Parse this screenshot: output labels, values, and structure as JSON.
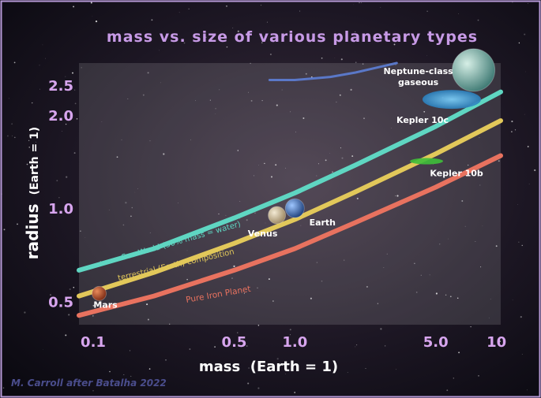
{
  "chart_data": {
    "type": "line",
    "title": "mass vs. size of various planetary types",
    "xlabel": "mass  (Earth = 1)",
    "ylabel_main": "radius",
    "ylabel_unit": "(Earth = 1)",
    "x_scale": "log",
    "y_scale": "log",
    "xlim": [
      0.085,
      10.5
    ],
    "ylim": [
      0.42,
      2.95
    ],
    "xticks": [
      {
        "value": 0.1,
        "label": "0.1"
      },
      {
        "value": 0.5,
        "label": "0.5"
      },
      {
        "value": 1.0,
        "label": "1.0"
      },
      {
        "value": 5.0,
        "label": "5.0"
      },
      {
        "value": 10,
        "label": "10"
      }
    ],
    "yticks": [
      {
        "value": 0.5,
        "label": "0.5"
      },
      {
        "value": 1.0,
        "label": "1.0"
      },
      {
        "value": 2.0,
        "label": "2.0"
      },
      {
        "value": 2.5,
        "label": "2.5"
      }
    ],
    "series": [
      {
        "name": "Sea World (50% mass = water)",
        "color": "#5fd6c2",
        "x": [
          0.085,
          0.2,
          0.5,
          1.0,
          2.0,
          5.0,
          10.5
        ],
        "y": [
          0.63,
          0.74,
          0.93,
          1.12,
          1.38,
          1.84,
          2.38
        ]
      },
      {
        "name": "terrestrial (Earth) composition",
        "color": "#e2c85a",
        "x": [
          0.085,
          0.2,
          0.5,
          1.0,
          2.0,
          5.0,
          10.5
        ],
        "y": [
          0.52,
          0.62,
          0.77,
          0.92,
          1.13,
          1.5,
          1.92
        ]
      },
      {
        "name": "Pure Iron Planet",
        "color": "#e8725f",
        "x": [
          0.085,
          0.2,
          0.5,
          1.0,
          2.0,
          5.0,
          10.5
        ],
        "y": [
          0.45,
          0.52,
          0.63,
          0.74,
          0.9,
          1.17,
          1.48
        ]
      },
      {
        "name": "Neptune-class gaseous",
        "color": "#5a78c8",
        "x": [
          0.75,
          1.0,
          1.5,
          2.0,
          2.6,
          3.2
        ],
        "y": [
          2.6,
          2.6,
          2.66,
          2.75,
          2.86,
          2.95
        ]
      }
    ],
    "points": [
      {
        "name": "Mars",
        "x": 0.107,
        "y": 0.53,
        "color": "#c0552b"
      },
      {
        "name": "Venus",
        "x": 0.815,
        "y": 0.95,
        "color": "#d9c7a0"
      },
      {
        "name": "Earth",
        "x": 1.0,
        "y": 1.0,
        "color": "#3a6fb8"
      },
      {
        "name": "Kepler 10b",
        "x": 4.5,
        "y": 1.42,
        "color": "#3fbf3a"
      },
      {
        "name": "Kepler 10c",
        "x": 6.0,
        "y": 2.25,
        "color": "#3aa8e0"
      },
      {
        "name": "Neptune-class gaseous",
        "x": 7.7,
        "y": 2.8,
        "color": "#7fb0a8"
      }
    ],
    "credit": "M. Carroll after Batalha 2022"
  }
}
